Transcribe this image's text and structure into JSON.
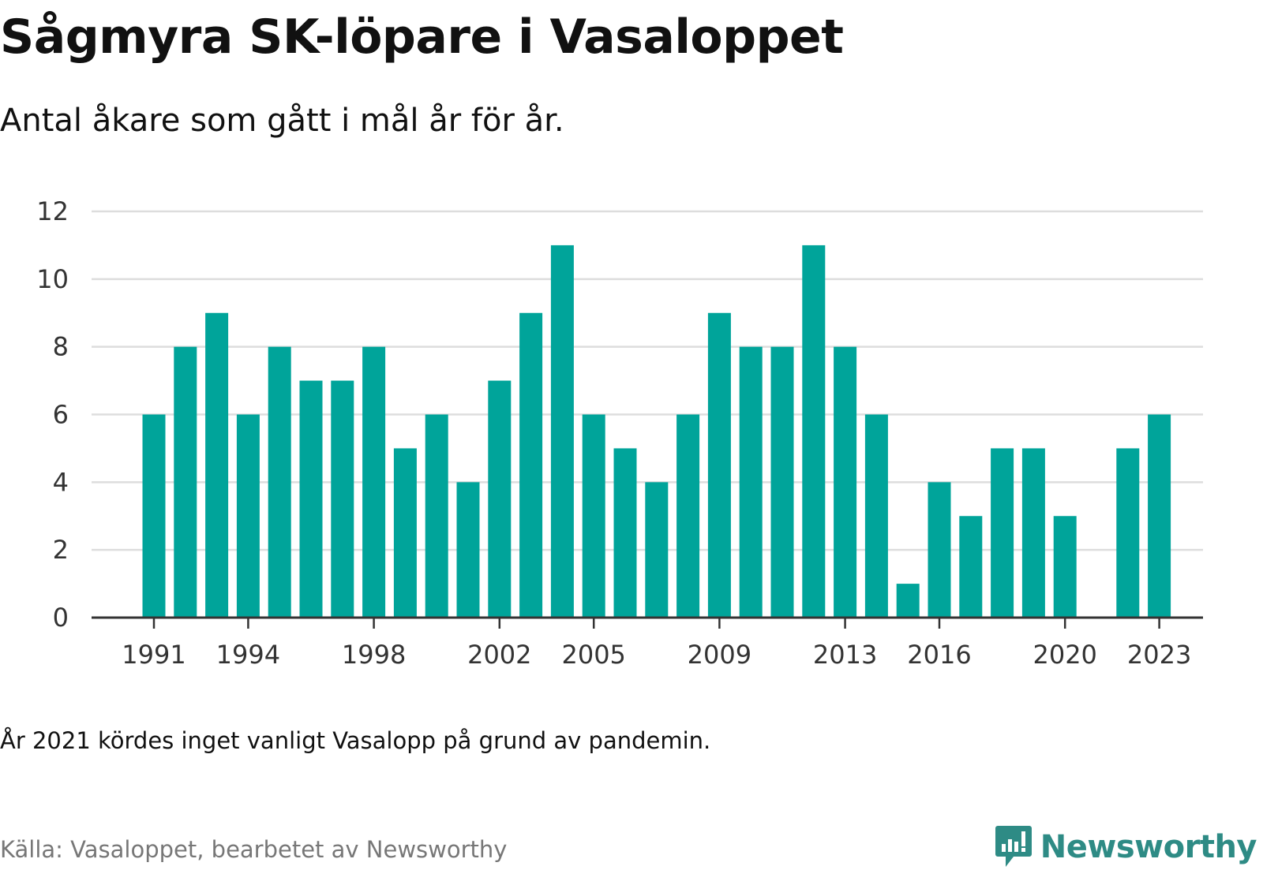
{
  "header": {
    "title": "Sågmyra SK-löpare i Vasaloppet",
    "subtitle": "Antal åkare som gått i mål år för år."
  },
  "footer": {
    "note": "År 2021 kördes inget vanligt Vasalopp på grund av pandemin.",
    "source": "Källa: Vasaloppet, bearbetet av Newsworthy",
    "brand": "Newsworthy"
  },
  "colors": {
    "bar": "#00a49a",
    "grid": "#dddddd",
    "axis": "#333333",
    "brand": "#2e8b85"
  },
  "chart_data": {
    "type": "bar",
    "title": "Sågmyra SK-löpare i Vasaloppet",
    "subtitle": "Antal åkare som gått i mål år för år.",
    "categories": [
      1991,
      1992,
      1993,
      1994,
      1995,
      1996,
      1997,
      1998,
      1999,
      2000,
      2001,
      2002,
      2003,
      2004,
      2005,
      2006,
      2007,
      2008,
      2009,
      2010,
      2011,
      2012,
      2013,
      2014,
      2015,
      2016,
      2017,
      2018,
      2019,
      2020,
      2021,
      2022,
      2023
    ],
    "values": [
      6,
      8,
      9,
      6,
      8,
      7,
      7,
      8,
      5,
      6,
      4,
      7,
      9,
      11,
      6,
      5,
      4,
      6,
      9,
      8,
      8,
      11,
      8,
      6,
      1,
      4,
      3,
      5,
      5,
      3,
      null,
      5,
      6
    ],
    "x_tick_labels": [
      "1991",
      "1994",
      "1998",
      "2002",
      "2005",
      "2009",
      "2013",
      "2016",
      "2020",
      "2023"
    ],
    "y_ticks": [
      0,
      2,
      4,
      6,
      8,
      10,
      12
    ],
    "ylim": [
      0,
      12
    ],
    "grid": true,
    "legend": "none",
    "xlabel": "",
    "ylabel": ""
  }
}
